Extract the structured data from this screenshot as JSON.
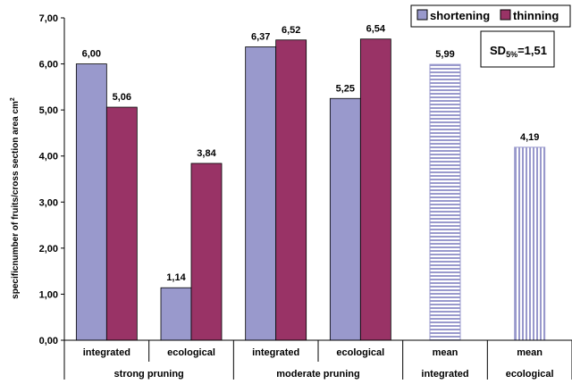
{
  "chart_data": {
    "type": "bar",
    "ylabel_main": "specificnumber of fruits/cross section area cm",
    "ylabel_sup": "2",
    "ylim": [
      0,
      7
    ],
    "yticks": [
      "0,00",
      "1,00",
      "2,00",
      "3,00",
      "4,00",
      "5,00",
      "6,00",
      "7,00"
    ],
    "grid": false,
    "legend_position": "top-right",
    "categories": [
      "integrated",
      "ecological",
      "integrated",
      "ecological",
      "mean",
      "mean"
    ],
    "categories_line2": [
      "",
      "",
      "",
      "",
      "integrated",
      "ecological"
    ],
    "groups": [
      {
        "label": "strong pruning",
        "span": [
          0,
          1
        ]
      },
      {
        "label": "moderate pruning",
        "span": [
          2,
          3
        ]
      }
    ],
    "series": [
      {
        "name": "shortening",
        "color": "#9999cc",
        "pattern": "solid",
        "values": [
          6.0,
          1.14,
          6.37,
          5.25,
          null,
          null
        ],
        "labels": [
          "6,00",
          "1,14",
          "6,37",
          "5,25",
          "",
          ""
        ]
      },
      {
        "name": "thinning",
        "color": "#993366",
        "pattern": "solid",
        "values": [
          5.06,
          3.84,
          6.52,
          6.54,
          null,
          null
        ],
        "labels": [
          "5,06",
          "3,84",
          "6,52",
          "6,54",
          "",
          ""
        ]
      }
    ],
    "mean_bars": [
      {
        "category_index": 4,
        "value": 5.99,
        "label": "5,99",
        "pattern": "horizontal-stripes",
        "color": "#9999cc"
      },
      {
        "category_index": 5,
        "value": 4.19,
        "label": "4,19",
        "pattern": "vertical-stripes",
        "color": "#9999cc"
      }
    ],
    "annotation": {
      "main": "SD",
      "sub": "5%",
      "rest": "=1,51"
    }
  }
}
